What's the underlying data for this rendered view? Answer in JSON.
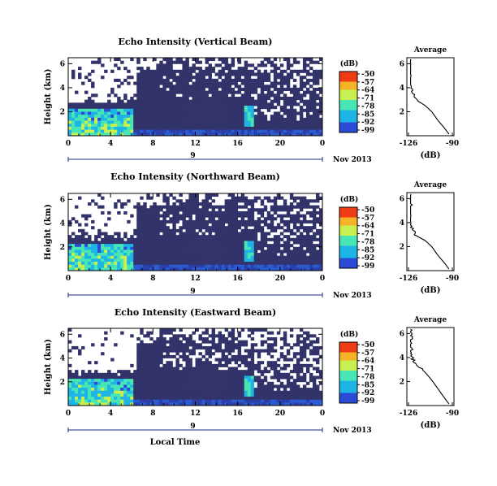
{
  "chart_data": [
    {
      "type": "heatmap",
      "title": "Echo Intensity (Vertical Beam)",
      "ylabel": "Height (km)",
      "x_ticks": [
        "0",
        "4",
        "8",
        "12",
        "16",
        "20",
        "0"
      ],
      "y_ticks": [
        "6",
        "4",
        "2"
      ],
      "date_marker": "9",
      "date_label": "Nov 2013",
      "colorbar": {
        "label": "(dB)",
        "ticks": [
          "-50",
          "-57",
          "-64",
          "-71",
          "-78",
          "-85",
          "-92",
          "-99"
        ]
      },
      "average_panel": {
        "title": "Average",
        "xlabel": "(dB)",
        "x_ticks": [
          "-126",
          "-90"
        ],
        "y_ticks": [
          "6",
          "4",
          "2"
        ]
      }
    },
    {
      "type": "heatmap",
      "title": "Echo Intensity (Northward Beam)",
      "ylabel": "Height (km)",
      "x_ticks": [
        "0",
        "4",
        "8",
        "12",
        "16",
        "20",
        "0"
      ],
      "y_ticks": [
        "6",
        "4",
        "2"
      ],
      "date_marker": "9",
      "date_label": "Nov 2013",
      "colorbar": {
        "label": "(dB)",
        "ticks": [
          "-50",
          "-57",
          "-64",
          "-71",
          "-78",
          "-85",
          "-92",
          "-99"
        ]
      },
      "average_panel": {
        "title": "Average",
        "xlabel": "(dB)",
        "x_ticks": [
          "-126",
          "-90"
        ],
        "y_ticks": [
          "6",
          "4",
          "2"
        ]
      }
    },
    {
      "type": "heatmap",
      "title": "Echo Intensity (Eastward Beam)",
      "ylabel": "Height (km)",
      "x_ticks": [
        "0",
        "4",
        "8",
        "12",
        "16",
        "20",
        "0"
      ],
      "y_ticks": [
        "6",
        "4",
        "2"
      ],
      "date_marker": "9",
      "date_label": "Nov 2013",
      "xlabel": "Local Time",
      "colorbar": {
        "label": "(dB)",
        "ticks": [
          "-50",
          "-57",
          "-64",
          "-71",
          "-78",
          "-85",
          "-92",
          "-99"
        ]
      },
      "average_panel": {
        "title": "Average",
        "xlabel": "(dB)",
        "x_ticks": [
          "-126",
          "-90"
        ],
        "y_ticks": [
          "6",
          "4",
          "2"
        ]
      }
    }
  ]
}
